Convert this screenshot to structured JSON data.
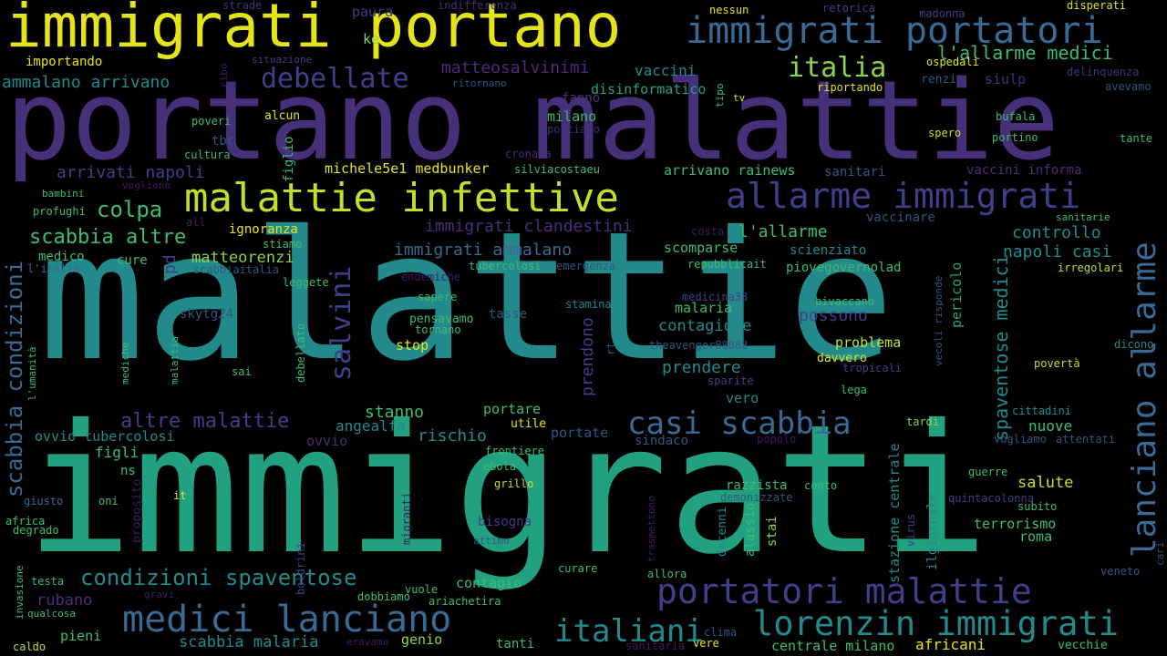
{
  "palette": {
    "purple": "#46307a",
    "deep_purple": "#3b1d65",
    "indigo": "#3f3f8a",
    "blue": "#3a6a94",
    "slate": "#30567f",
    "teal": "#238a8c",
    "green_teal": "#22a180",
    "green": "#3fbc72",
    "light_green": "#8cd24e",
    "yellow_green": "#c2de2a",
    "yellow": "#e3e41a"
  },
  "words": [
    "immigrati portano",
    "immigrati portatori",
    "portano malattie",
    "malattie",
    "immigrati",
    "malattie infettive",
    "allarme immigrati",
    "lanciano allarme",
    "casi scabbia",
    "portatori malattie",
    "medici lanciano",
    "lorenzin immigrati",
    "condizioni spaventose",
    "italiani",
    "italia",
    "debellate",
    "l'allarme medici",
    "scabbia condizioni",
    "salvini",
    "spaventose medici",
    "altre malattie",
    "immigrati clandestini",
    "immigrati ammalano",
    "scabbia altre",
    "colpa",
    "arrivati napoli",
    "matteosalvinimi",
    "ammalano arrivano",
    "napoli casi",
    "controllo",
    "l'allarme",
    "vaccini",
    "disinformatico",
    "milano",
    "fanno",
    "michele5e1 medbunker",
    "arrivano rainews",
    "vaccini informa",
    "sanitari",
    "vaccinare",
    "scienziato",
    "piovegovernolad",
    "scomparse",
    "matteorenzi",
    "ignoranza",
    "medico",
    "pd",
    "cure",
    "skytg24",
    "possono",
    "malaria",
    "contagiose",
    "prendere",
    "problema",
    "davvero",
    "stop",
    "pensavamo",
    "tornano",
    "sapere",
    "tasse",
    "stamina",
    "prendono",
    "stanno",
    "rischio",
    "angealfa",
    "ovvio",
    "ovvio tubercolosi",
    "figli",
    "ns",
    "portare",
    "utile",
    "portate",
    "sindaco",
    "vero",
    "nuove",
    "salute",
    "terrorismo",
    "roma",
    "razzista",
    "conto",
    "stazione centrale",
    "ilgiornale",
    "vecoli risponde",
    "pericolo",
    "frontiere",
    "ebola",
    "grillo",
    "bisogna",
    "attimo",
    "contagio",
    "rubano",
    "scabbia malaria",
    "genio",
    "tanti",
    "centrale milano",
    "africani",
    "vecchie",
    "pieni",
    "dobbiamo",
    "ariachetira",
    "vuole",
    "curare",
    "allora",
    "clima",
    "vere",
    "sanitaria",
    "eravamo",
    "caldo",
    "qualcosa",
    "invasione",
    "testa",
    "gravi",
    "degrado",
    "africa",
    "giusto",
    "oni",
    "it",
    "proposito",
    "migranti",
    "boldrini",
    "trasmettono",
    "decenni",
    "alassio",
    "stai",
    "virus",
    "quintacolonna",
    "subito",
    "guerre",
    "demonizzate",
    "veneto",
    "cari",
    "vogliamo",
    "attentati",
    "popolo",
    "tardi",
    "cittadini",
    "povertà",
    "dicono",
    "lega",
    "tropicali",
    "sparite",
    "theavenger88888",
    "rt",
    "bivaccano",
    "medicina33",
    "repubblicait",
    "emergenza",
    "tubercolosi",
    "endemiche",
    "leggete",
    "l'italia",
    "scabbiaitalia",
    "stiamo",
    "all",
    "profughi",
    "vogliono",
    "bambini",
    "debellato",
    "sai",
    "mediche",
    "malattia",
    "l'umanità",
    "figlio",
    "cultura",
    "tbc",
    "poveri",
    "alcun",
    "portiamo",
    "cronaca",
    "silviacostaeu",
    "costa",
    "strade",
    "paura",
    "indifferenza",
    "nessun",
    "retorica",
    "madonna",
    "disperati",
    "ke",
    "importando",
    "cibo",
    "situazione",
    "ritornano",
    "tipo",
    "tv",
    "ospedali",
    "renzi",
    "siulp",
    "delinquenza",
    "riportando",
    "avevamo",
    "bufala",
    "portino",
    "tante",
    "spero",
    "irregolari",
    "sanitarie"
  ]
}
